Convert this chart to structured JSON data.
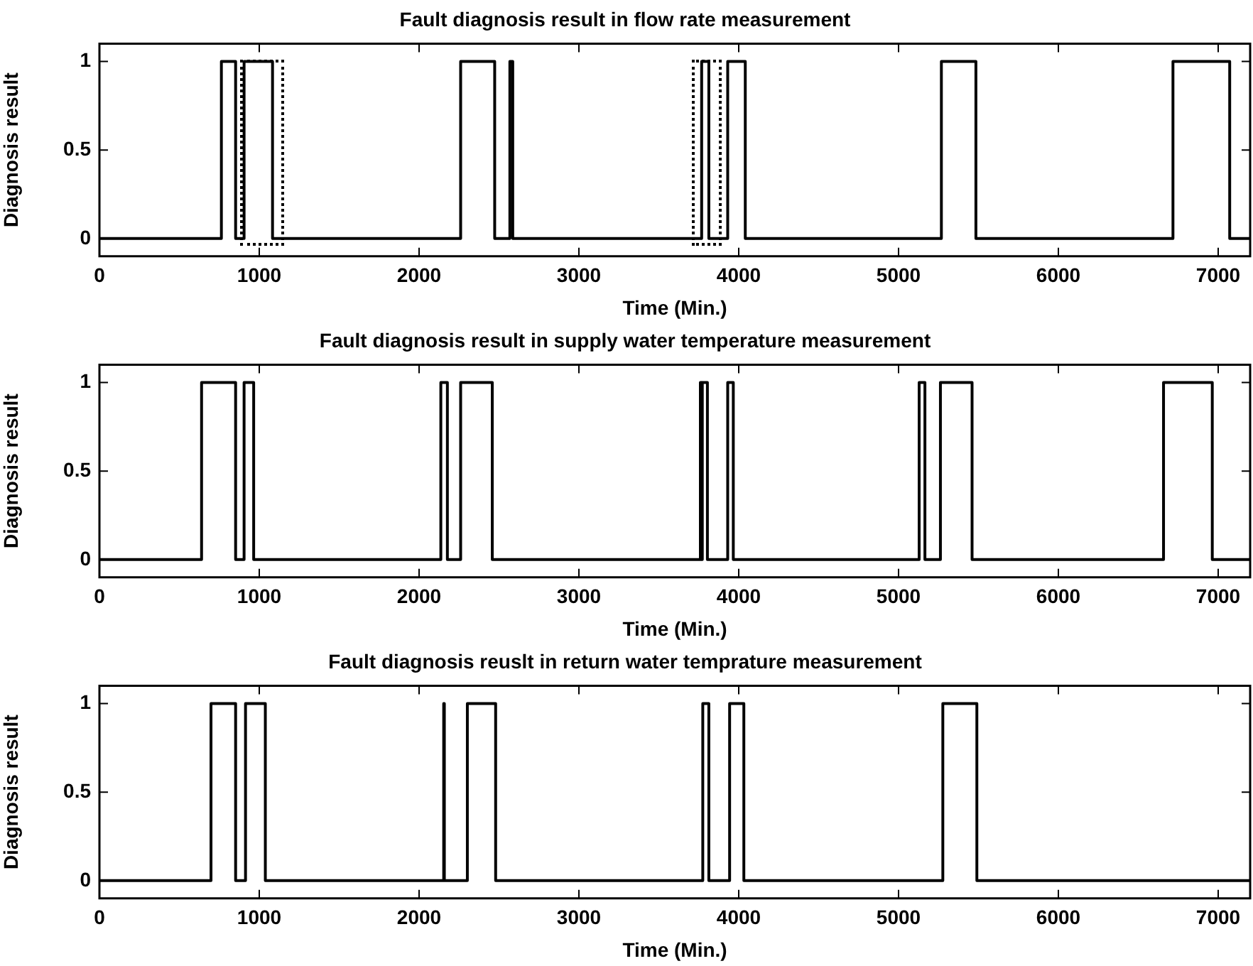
{
  "chart_data": [
    {
      "type": "step",
      "title": "Fault diagnosis result in flow rate measurement",
      "xlabel": "Time (Min.)",
      "ylabel": "Diagnosis result",
      "xlim": [
        0,
        7200
      ],
      "xticks": [
        0,
        1000,
        2000,
        3000,
        4000,
        5000,
        6000,
        7000
      ],
      "ylim": [
        -0.1,
        1.1
      ],
      "yticks": [
        0,
        0.5,
        1
      ],
      "grid": false,
      "legend": false,
      "series": [
        {
          "color": "#000000",
          "x": [
            0,
            763,
            852,
            905,
            1083,
            2260,
            2473,
            2568,
            2586,
            3768,
            3813,
            3931,
            4041,
            5268,
            5484,
            6717,
            7072,
            7200
          ],
          "values": [
            0,
            1,
            0,
            1,
            0,
            1,
            0,
            1,
            0,
            1,
            0,
            1,
            0,
            1,
            0,
            1,
            0,
            0
          ]
        }
      ]
    },
    {
      "type": "step",
      "title": "Fault diagnosis result in supply water temperature measurement",
      "xlabel": "Time (Min.)",
      "ylabel": "Diagnosis result",
      "xlim": [
        0,
        7200
      ],
      "xticks": [
        0,
        1000,
        2000,
        3000,
        4000,
        5000,
        6000,
        7000
      ],
      "ylim": [
        -0.1,
        1.1
      ],
      "yticks": [
        0,
        0.5,
        1
      ],
      "grid": false,
      "legend": false,
      "series": [
        {
          "color": "#000000",
          "x": [
            0,
            639,
            852,
            905,
            965,
            2136,
            2177,
            2260,
            2458,
            3760,
            3766,
            3772,
            3804,
            3931,
            3966,
            5129,
            5165,
            5262,
            5460,
            6658,
            6963,
            7200
          ],
          "values": [
            0,
            1,
            0,
            1,
            0,
            1,
            0,
            1,
            0,
            1,
            0,
            1,
            0,
            1,
            0,
            1,
            0,
            1,
            0,
            1,
            0,
            0
          ]
        }
      ]
    },
    {
      "type": "step",
      "title": "Fault diagnosis reuslt in return water temprature measurement",
      "xlabel": "Time (Min.)",
      "ylabel": "Diagnosis result",
      "xlim": [
        0,
        7200
      ],
      "xticks": [
        0,
        1000,
        2000,
        3000,
        4000,
        5000,
        6000,
        7000
      ],
      "ylim": [
        -0.1,
        1.1
      ],
      "yticks": [
        0,
        0.5,
        1
      ],
      "grid": false,
      "legend": false,
      "series": [
        {
          "color": "#000000",
          "x": [
            0,
            698,
            852,
            914,
            1038,
            2154,
            2158,
            2302,
            2479,
            3775,
            3813,
            3943,
            4032,
            5277,
            5490,
            7200
          ],
          "values": [
            0,
            1,
            0,
            1,
            0,
            1,
            0,
            1,
            0,
            1,
            0,
            1,
            0,
            1,
            0,
            0
          ]
        }
      ]
    }
  ]
}
